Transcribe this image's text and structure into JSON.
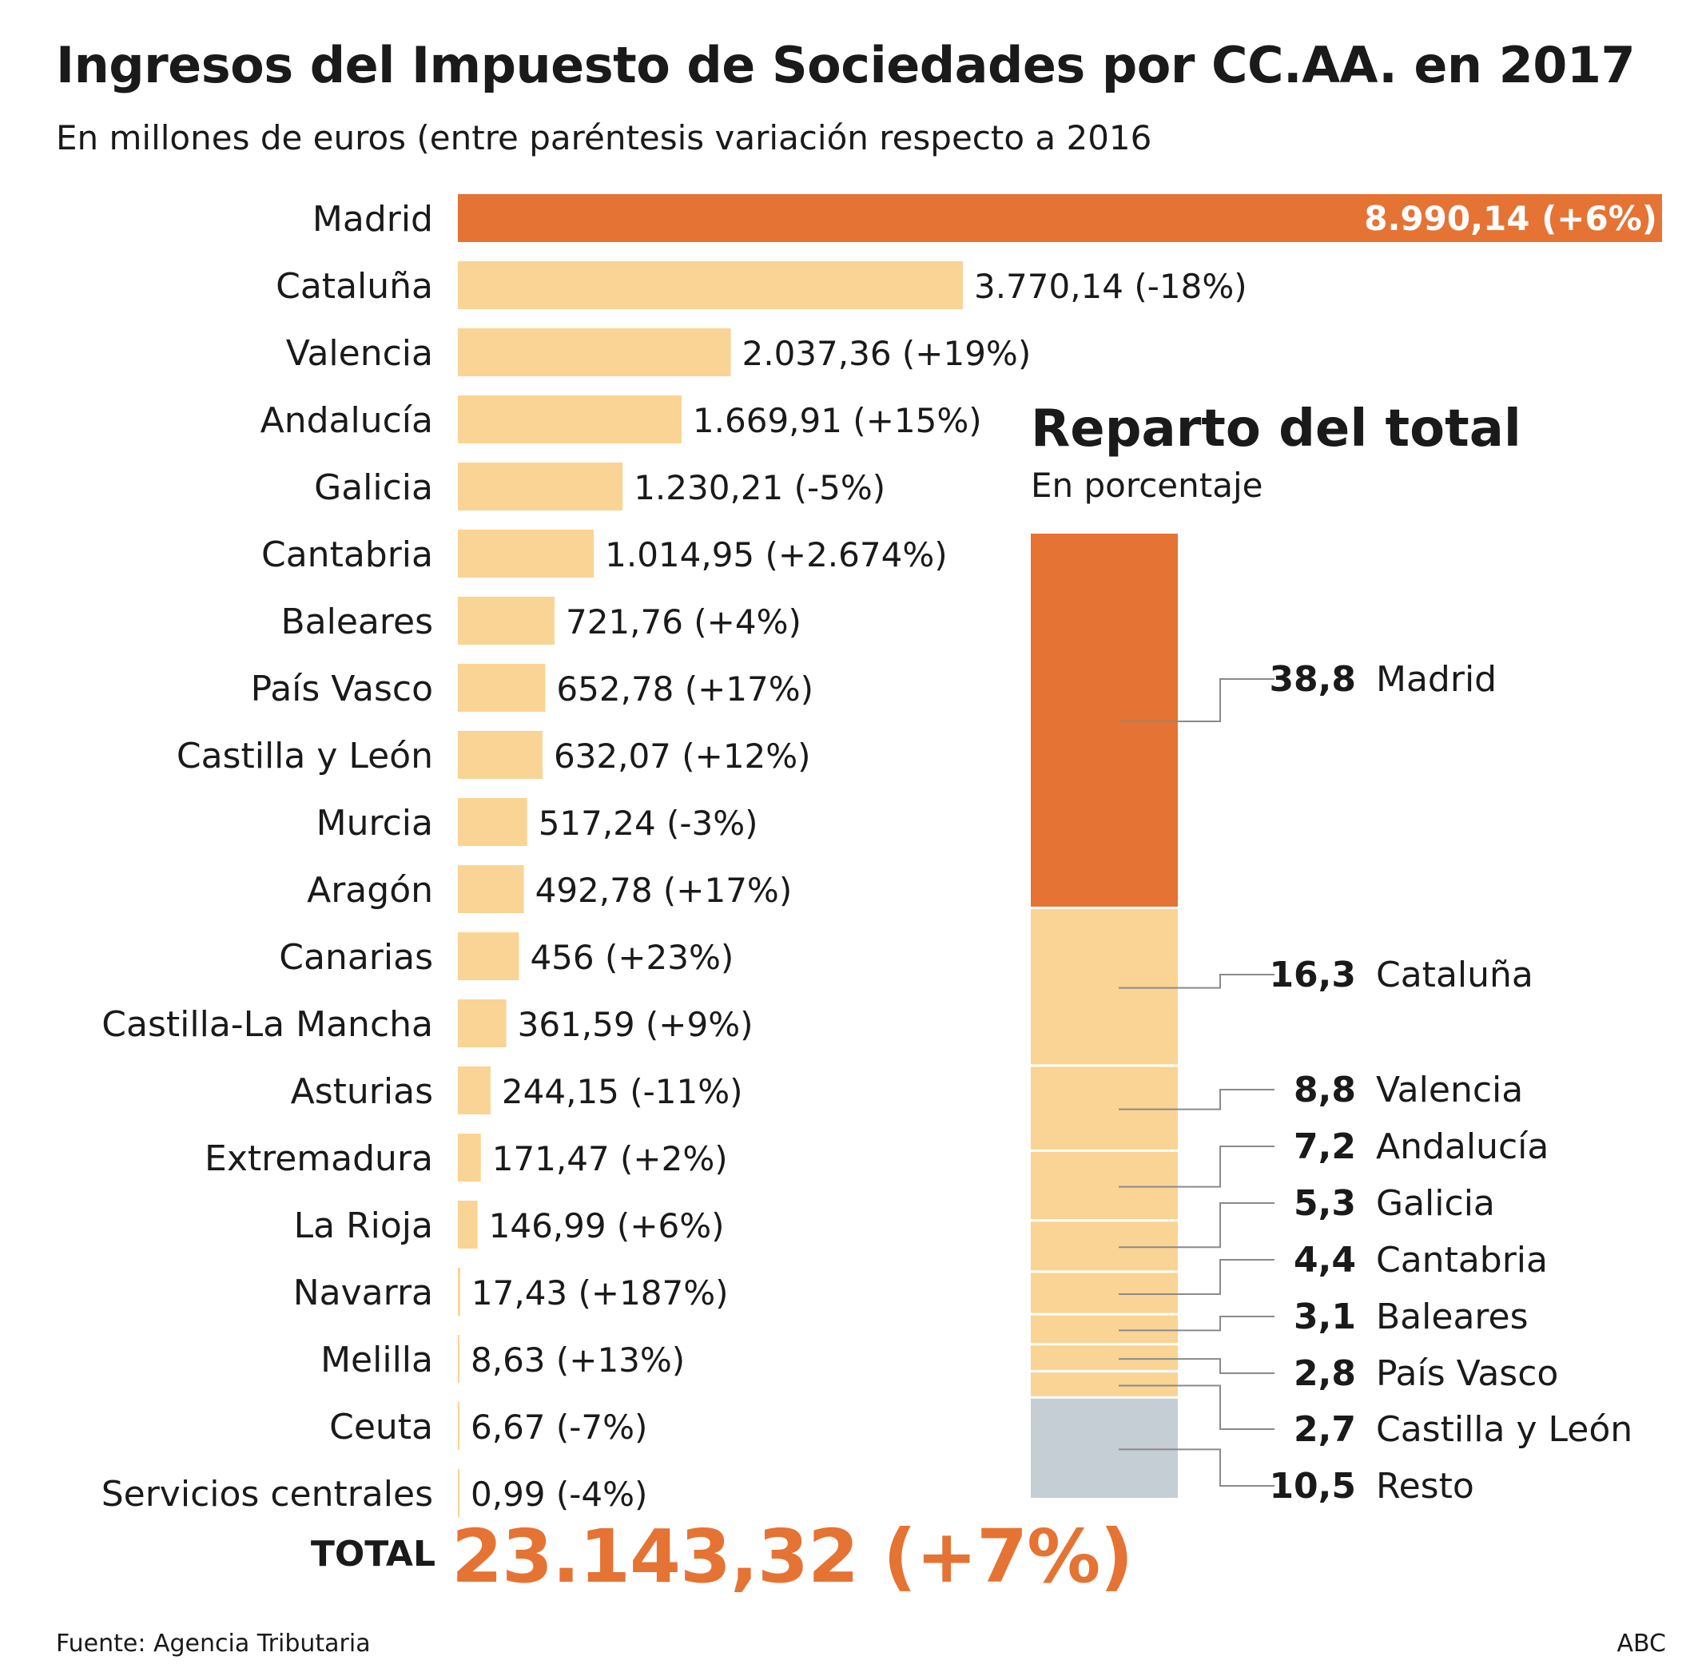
{
  "header": {
    "title": "Ingresos del Impuesto de Sociedades por CC.AA. en 2017",
    "subtitle": "En millones de euros (entre paréntesis variación respecto a 2016"
  },
  "total": {
    "label": "TOTAL",
    "value": "23.143,32 (+7%)"
  },
  "share": {
    "title": "Reparto del total",
    "subtitle": "En porcentaje"
  },
  "footer": {
    "source": "Fuente: Agencia Tributaria",
    "credit": "ABC"
  },
  "colors": {
    "highlight": "#e57334",
    "bar": "#fad494",
    "rest": "#c5cdd5",
    "text": "#1a1a1a",
    "leader": "#8a8a8a"
  },
  "chart_data": [
    {
      "type": "bar",
      "orientation": "horizontal",
      "categories": [
        "Madrid",
        "Cataluña",
        "Valencia",
        "Andalucía",
        "Galicia",
        "Cantabria",
        "Baleares",
        "País Vasco",
        "Castilla y León",
        "Murcia",
        "Aragón",
        "Canarias",
        "Castilla-La Mancha",
        "Asturias",
        "Extremadura",
        "La Rioja",
        "Navarra",
        "Melilla",
        "Ceuta",
        "Servicios centrales"
      ],
      "values": [
        8990.14,
        3770.14,
        2037.36,
        1669.91,
        1230.21,
        1014.95,
        721.76,
        652.78,
        632.07,
        517.24,
        492.78,
        456,
        361.59,
        244.15,
        171.47,
        146.99,
        17.43,
        8.63,
        6.67,
        0.99
      ],
      "labels": [
        "8.990,14 (+6%)",
        "3.770,14 (-18%)",
        "2.037,36 (+19%)",
        "1.669,91 (+15%)",
        "1.230,21 (-5%)",
        "1.014,95 (+2.674%)",
        "721,76 (+4%)",
        "652,78 (+17%)",
        "632,07 (+12%)",
        "517,24 (-3%)",
        "492,78 (+17%)",
        "456 (+23%)",
        "361,59 (+9%)",
        "244,15 (-11%)",
        "171,47 (+2%)",
        "146,99 (+6%)",
        "17,43 (+187%)",
        "8,63 (+13%)",
        "6,67 (-7%)",
        "0,99 (-4%)"
      ],
      "highlight": [
        "Madrid"
      ]
    },
    {
      "type": "bar",
      "stacked": true,
      "orientation": "vertical",
      "categories": [
        "Madrid",
        "Cataluña",
        "Valencia",
        "Andalucía",
        "Galicia",
        "Cantabria",
        "Baleares",
        "País Vasco",
        "Castilla y León",
        "Resto"
      ],
      "values": [
        38.8,
        16.3,
        8.8,
        7.2,
        5.3,
        4.4,
        3.1,
        2.8,
        2.7,
        10.5
      ],
      "labels": [
        "38,8",
        "16,3",
        "8,8",
        "7,2",
        "5,3",
        "4,4",
        "3,1",
        "2,8",
        "2,7",
        "10,5"
      ]
    }
  ]
}
